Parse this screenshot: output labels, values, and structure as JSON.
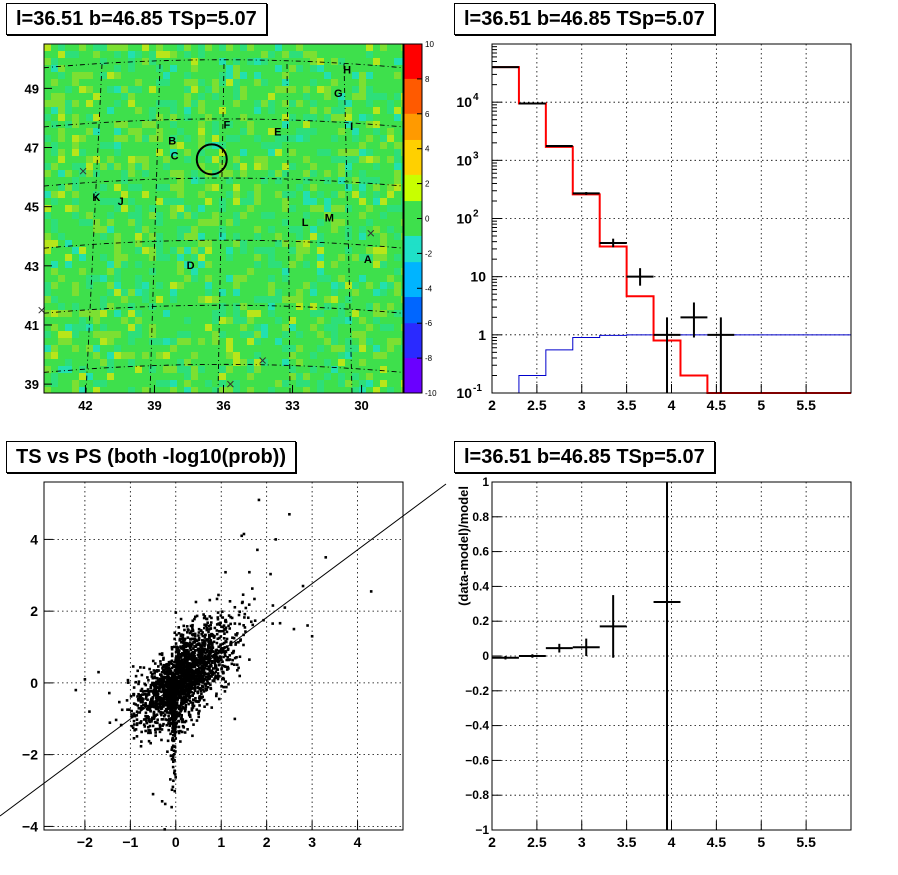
{
  "colors": {
    "model": "#ff0000",
    "data": "#000000",
    "reference": "#0000cc",
    "grid": "#000000"
  },
  "panels": [
    {
      "id": "skymap",
      "title": "l=36.51 b=46.85 TSp=5.07",
      "type": "heatmap",
      "x_ticks": [
        "42",
        "39",
        "36",
        "33",
        "30"
      ],
      "y_ticks": [
        "39",
        "41",
        "43",
        "45",
        "47",
        "49"
      ],
      "colorbar_ticks": [
        "10",
        "8",
        "6",
        "4",
        "2",
        "0",
        "-2",
        "-4",
        "-6",
        "-8",
        "-10"
      ],
      "zlim": [
        -10,
        10
      ],
      "source_labels": [
        {
          "label": "H",
          "lon": 30.8,
          "lat": 49.5
        },
        {
          "label": "G",
          "lon": 31.2,
          "lat": 48.7
        },
        {
          "label": "I",
          "lon": 30.5,
          "lat": 47.6
        },
        {
          "label": "F",
          "lon": 36.0,
          "lat": 47.65
        },
        {
          "label": "E",
          "lon": 33.8,
          "lat": 47.4
        },
        {
          "label": "B",
          "lon": 38.4,
          "lat": 47.1
        },
        {
          "label": "C",
          "lon": 38.3,
          "lat": 46.6
        },
        {
          "label": "K",
          "lon": 41.7,
          "lat": 45.2
        },
        {
          "label": "J",
          "lon": 40.6,
          "lat": 45.05
        },
        {
          "label": "L",
          "lon": 32.6,
          "lat": 44.35
        },
        {
          "label": "M",
          "lon": 31.6,
          "lat": 44.5
        },
        {
          "label": "D",
          "lon": 37.6,
          "lat": 42.9
        },
        {
          "label": "A",
          "lon": 29.9,
          "lat": 43.1
        }
      ],
      "x_markers": [
        {
          "lon": 42.1,
          "lat": 46.2
        },
        {
          "lon": 29.6,
          "lat": 44.1
        },
        {
          "lon": 43.9,
          "lat": 41.5
        },
        {
          "lon": 34.3,
          "lat": 39.8
        },
        {
          "lon": 35.7,
          "lat": 39.0
        }
      ],
      "circle": {
        "lon": 36.51,
        "lat": 46.6
      }
    },
    {
      "id": "spectrum",
      "title": "l=36.51 b=46.85 TSp=5.07",
      "type": "histogram",
      "xlim": [
        2,
        6
      ],
      "ylim": [
        0.1,
        100000
      ],
      "log_y": true,
      "x_ticks": [
        "2",
        "2.5",
        "3",
        "3.5",
        "4",
        "4.5",
        "5",
        "5.5"
      ],
      "y_ticks": [
        "10^-1",
        "1",
        "10",
        "10^2",
        "10^3",
        "10^4"
      ],
      "bin_edges": [
        2.0,
        2.3,
        2.6,
        2.9,
        3.2,
        3.5,
        3.8,
        4.1,
        4.4,
        4.7,
        5.0,
        5.3,
        5.6,
        6.0
      ],
      "model": [
        40000,
        9500,
        1700,
        260,
        33,
        4.6,
        0.8,
        0.2,
        0.1,
        0.1,
        0.1,
        0.1,
        0.1
      ],
      "reference": [
        0.1,
        0.2,
        0.55,
        0.9,
        0.98,
        1.0,
        1.0,
        1.0,
        1.0,
        1.0,
        1.0,
        1.0,
        1.0
      ],
      "data": [
        {
          "x": 2.15,
          "xerr": 0.15,
          "y": 40000,
          "ylo": 39800,
          "yhi": 40200
        },
        {
          "x": 2.45,
          "xerr": 0.15,
          "y": 9500,
          "ylo": 9400,
          "yhi": 9600
        },
        {
          "x": 2.75,
          "xerr": 0.15,
          "y": 1760,
          "ylo": 1720,
          "yhi": 1800
        },
        {
          "x": 3.05,
          "xerr": 0.15,
          "y": 270,
          "ylo": 255,
          "yhi": 285
        },
        {
          "x": 3.35,
          "xerr": 0.15,
          "y": 38,
          "ylo": 32,
          "yhi": 45
        },
        {
          "x": 3.65,
          "xerr": 0.15,
          "y": 10,
          "ylo": 7,
          "yhi": 14
        },
        {
          "x": 3.95,
          "xerr": 0.15,
          "y": 1,
          "ylo": 0.1,
          "yhi": 2
        },
        {
          "x": 4.25,
          "xerr": 0.15,
          "y": 2,
          "ylo": 0.9,
          "yhi": 3.6
        },
        {
          "x": 4.55,
          "xerr": 0.15,
          "y": 1,
          "ylo": 0.1,
          "yhi": 2
        }
      ]
    },
    {
      "id": "ts-vs-ps",
      "title": "TS vs PS (both -log10(prob))",
      "type": "scatter",
      "xlim": [
        -2.9,
        5.0
      ],
      "ylim": [
        -4.1,
        5.6
      ],
      "x_ticks": [
        "-2",
        "-1",
        "0",
        "1",
        "2",
        "3",
        "4"
      ],
      "y_ticks": [
        "-4",
        "-2",
        "0",
        "2",
        "4"
      ],
      "reference_line": {
        "slope": 1,
        "intercept": 0
      },
      "outliers": [
        [
          1.83,
          5.1
        ],
        [
          2.5,
          4.7
        ],
        [
          1.45,
          4.1
        ],
        [
          1.5,
          4.15
        ],
        [
          4.3,
          2.55
        ],
        [
          3.3,
          3.5
        ],
        [
          2.4,
          2.1
        ],
        [
          2.6,
          1.5
        ],
        [
          3.0,
          1.3
        ],
        [
          2.9,
          1.6
        ],
        [
          -2.2,
          -0.2
        ],
        [
          -2.0,
          0.1
        ],
        [
          -1.9,
          -0.8
        ],
        [
          -0.3,
          -3.3
        ],
        [
          -0.5,
          -3.1
        ],
        [
          -1.7,
          0.3
        ],
        [
          2.8,
          2.7
        ],
        [
          2.2,
          4.0
        ]
      ]
    },
    {
      "id": "residuals",
      "title": "l=36.51 b=46.85 TSp=5.07",
      "type": "scatter",
      "xlim": [
        2,
        6
      ],
      "ylim": [
        -1,
        1
      ],
      "ylabel": "(data-model)/model",
      "x_ticks": [
        "2",
        "2.5",
        "3",
        "3.5",
        "4",
        "4.5",
        "5",
        "5.5"
      ],
      "y_ticks": [
        "-1",
        "-0.8",
        "-0.6",
        "-0.4",
        "-0.2",
        "0",
        "0.2",
        "0.4",
        "0.6",
        "0.8",
        "1"
      ],
      "points": [
        {
          "x": 2.15,
          "xerr": 0.15,
          "y": -0.01,
          "yerr": 0.01
        },
        {
          "x": 2.45,
          "xerr": 0.15,
          "y": 0.0,
          "yerr": 0.01
        },
        {
          "x": 2.75,
          "xerr": 0.15,
          "y": 0.045,
          "yerr": 0.025
        },
        {
          "x": 3.05,
          "xerr": 0.15,
          "y": 0.05,
          "yerr": 0.05
        },
        {
          "x": 3.35,
          "xerr": 0.15,
          "y": 0.17,
          "yerr": 0.18
        },
        {
          "x": 3.95,
          "xerr": 0.15,
          "y": 0.31,
          "yerr": 1.4
        }
      ]
    }
  ]
}
